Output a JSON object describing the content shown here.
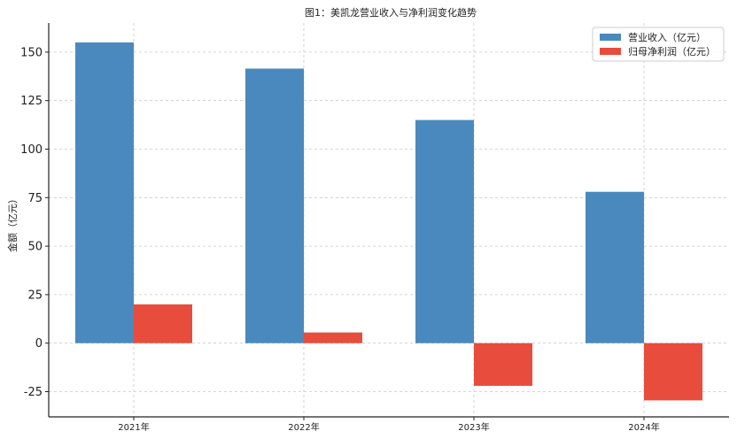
{
  "chart_data": {
    "type": "bar",
    "title": "图1：美凯龙营业收入与净利润变化趋势",
    "xlabel": "",
    "ylabel": "金额（亿元）",
    "categories": [
      "2021年",
      "2022年",
      "2023年",
      "2024年"
    ],
    "series": [
      {
        "name": "营业收入（亿元）",
        "color": "#4a89bd",
        "values": [
          155,
          141.5,
          115,
          78
        ]
      },
      {
        "name": "归母净利润（亿元）",
        "color": "#e84c3d",
        "values": [
          20,
          5.5,
          -22,
          -29.5
        ]
      }
    ],
    "ylim": [
      -38,
      165
    ],
    "yticks": [
      -25,
      0,
      25,
      50,
      75,
      100,
      125,
      150
    ],
    "ytick_labels": [
      "-25",
      "0",
      "25",
      "50",
      "75",
      "100",
      "125",
      "150"
    ],
    "grid": true,
    "legend_position": "top-right"
  }
}
